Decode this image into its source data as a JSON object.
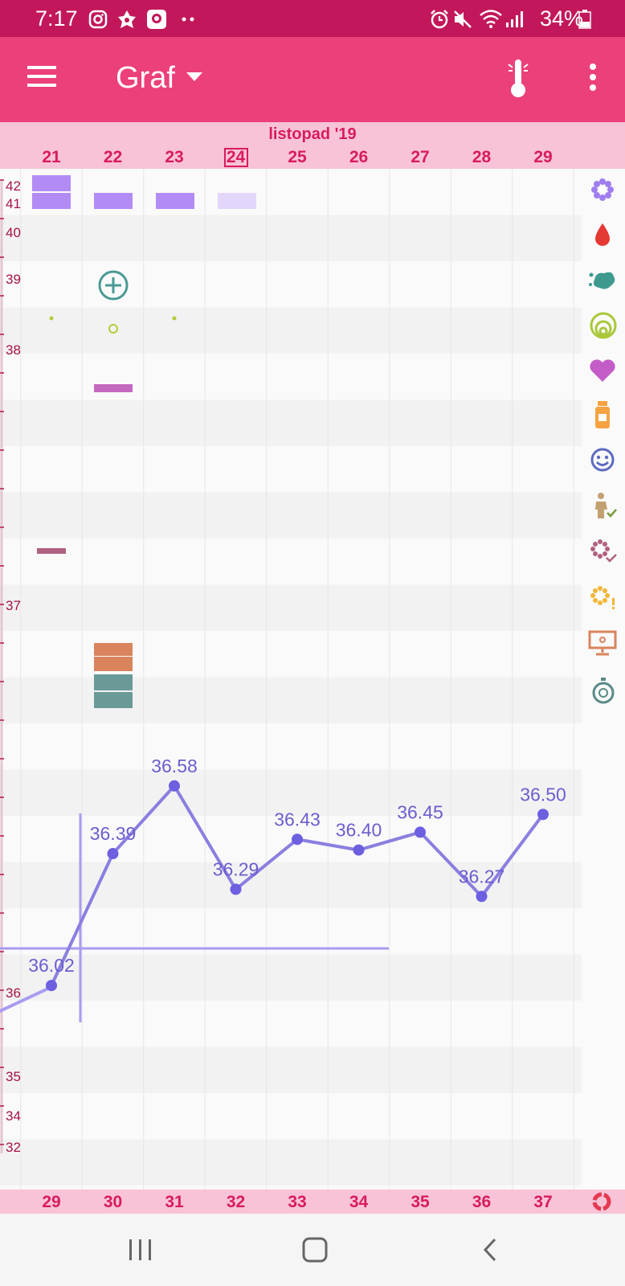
{
  "status_bar": {
    "time": "7:17",
    "battery": "34%",
    "left_icons": [
      "instagram-icon",
      "app-icon",
      "camera-app-icon",
      "more-dots-icon"
    ],
    "right_icons": [
      "alarm-icon",
      "mute-icon",
      "wifi-icon",
      "signal-icon",
      "battery-icon"
    ]
  },
  "app_bar": {
    "title": "Graf",
    "menu_icon": "hamburger-icon",
    "dropdown_icon": "triangle-down-icon",
    "thermometer_icon": "thermometer-icon",
    "overflow_icon": "more-vert-icon"
  },
  "calendar": {
    "month": "listopad '19",
    "days": [
      "21",
      "22",
      "23",
      "24",
      "25",
      "26",
      "27",
      "28",
      "29"
    ],
    "today_index": 3,
    "cycle_days": [
      "29",
      "30",
      "31",
      "32",
      "33",
      "34",
      "35",
      "36",
      "37"
    ]
  },
  "chart_data": {
    "type": "line",
    "x": [
      "21",
      "22",
      "23",
      "24",
      "25",
      "26",
      "27",
      "28",
      "29"
    ],
    "series": [
      {
        "values": [
          36.02,
          36.39,
          36.58,
          36.29,
          36.43,
          36.4,
          36.45,
          36.27,
          36.5
        ]
      }
    ],
    "point_labels": [
      "36.02",
      "36.39",
      "36.58",
      "36.29",
      "36.43",
      "36.40",
      "36.45",
      "36.27",
      "36.50"
    ],
    "y_tick_labels": [
      "42",
      "41",
      "40",
      "39",
      "38",
      "37",
      "36",
      "35",
      "34",
      "32"
    ],
    "color": "#8a7fe0",
    "coverline": 36.1
  },
  "icons": {
    "side": [
      "flower-icon",
      "blood-drop-icon",
      "splash-icon",
      "cervix-icon",
      "heart-icon",
      "medication-bottle-icon",
      "smiley-icon",
      "pregnancy-test-icon",
      "flower-check-icon",
      "flower-alert-icon",
      "monitor-icon",
      "stopwatch-icon"
    ],
    "footer": "ring-icon",
    "nav": [
      "recent-apps-icon",
      "home-icon",
      "back-icon"
    ]
  },
  "colors": {
    "status_bar": "#c2185b",
    "app_bar": "#ec407a",
    "header_band": "#f8c3d6",
    "accent": "#d81b60",
    "chart_line": "#8a7fe0"
  }
}
